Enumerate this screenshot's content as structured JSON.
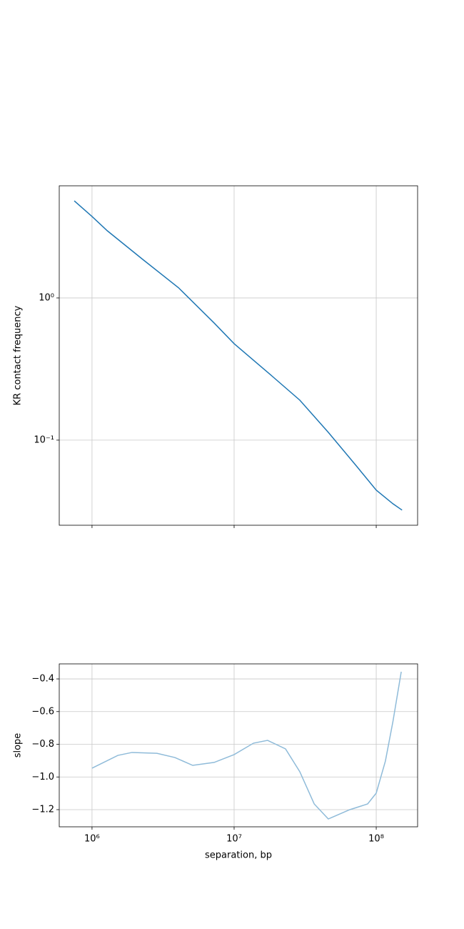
{
  "chart_data": [
    {
      "type": "line",
      "ylabel": "KR contact frequency",
      "log_x": true,
      "log_y": true,
      "grid": true,
      "color": "#1f77b4",
      "xlim": [
        588000,
        195500000
      ],
      "ylim": [
        0.0252,
        6.15
      ],
      "xticks": [
        1000000,
        10000000,
        100000000
      ],
      "yticks": [
        {
          "value": 0.1,
          "label": "10⁻¹"
        },
        {
          "value": 1,
          "label": "10⁰"
        }
      ],
      "x": [
        750000,
        1000000,
        1280000,
        2270000,
        4060000,
        7230000,
        10000000,
        18200000,
        29000000,
        46000000,
        73100000,
        100000000,
        131000000,
        152000000
      ],
      "values": [
        4.82,
        3.74,
        2.97,
        1.87,
        1.18,
        0.667,
        0.477,
        0.286,
        0.191,
        0.1135,
        0.0652,
        0.0445,
        0.0357,
        0.0322
      ]
    },
    {
      "type": "line",
      "ylabel": "slope",
      "xlabel": "separation, bp",
      "log_x": true,
      "log_y": false,
      "grid": true,
      "color": "#8fbbd9",
      "xlim": [
        588000,
        195500000
      ],
      "ylim": [
        -1.305,
        -0.308
      ],
      "xticks": [
        {
          "value": 1000000,
          "label": "10⁶"
        },
        {
          "value": 10000000,
          "label": "10⁷"
        },
        {
          "value": 100000000,
          "label": "10⁸"
        }
      ],
      "yticks": [
        {
          "value": -1.2,
          "label": "−1.2"
        },
        {
          "value": -1.0,
          "label": "−1.0"
        },
        {
          "value": -0.8,
          "label": "−0.8"
        },
        {
          "value": -0.6,
          "label": "−0.6"
        },
        {
          "value": -0.4,
          "label": "−0.4"
        }
      ],
      "x": [
        1000000,
        1520000,
        1910000,
        2860000,
        3830000,
        5110000,
        7230000,
        10000000,
        13700000,
        17200000,
        23000000,
        29000000,
        36600000,
        46000000,
        65200000,
        87000000,
        100000000,
        116000000,
        131000000,
        150000000
      ],
      "values": [
        -0.946,
        -0.868,
        -0.85,
        -0.855,
        -0.881,
        -0.929,
        -0.911,
        -0.863,
        -0.793,
        -0.776,
        -0.828,
        -0.968,
        -1.165,
        -1.257,
        -1.2,
        -1.165,
        -1.099,
        -0.903,
        -0.662,
        -0.356
      ]
    }
  ]
}
